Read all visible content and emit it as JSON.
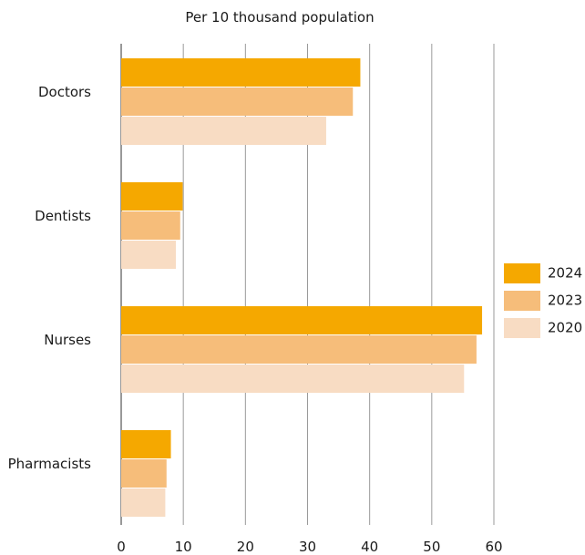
{
  "chart_data": {
    "type": "bar",
    "orientation": "horizontal",
    "title": "Per 10 thousand population",
    "xlabel": "",
    "ylabel": "",
    "categories": [
      "Doctors",
      "Dentists",
      "Nurses",
      "Pharmacists"
    ],
    "series": [
      {
        "name": "2024",
        "color": "#f5a800",
        "values": [
          38.5,
          9.9,
          58.1,
          8.0
        ]
      },
      {
        "name": "2023",
        "color": "#f6bd7a",
        "values": [
          37.3,
          9.5,
          57.2,
          7.3
        ]
      },
      {
        "name": "2020",
        "color": "#f8dcc3",
        "values": [
          33.0,
          8.8,
          55.2,
          7.1
        ]
      }
    ],
    "xlim": [
      0,
      60
    ],
    "xticks": [
      0,
      10,
      20,
      30,
      40,
      50,
      60
    ],
    "grid": true,
    "legend": "right"
  }
}
